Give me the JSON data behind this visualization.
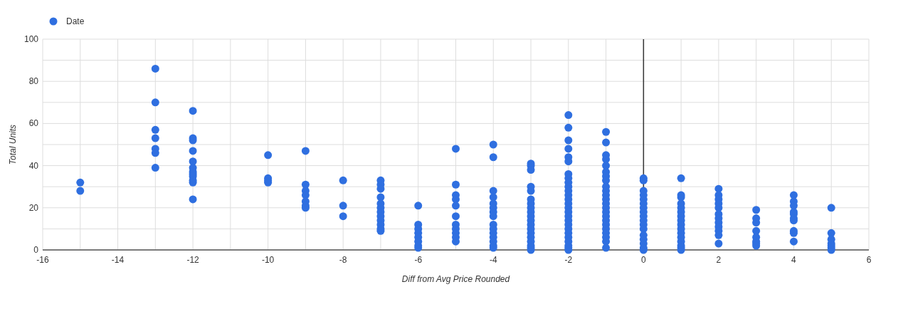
{
  "chart_data": {
    "type": "scatter",
    "xlabel": "Diff from Avg Price Rounded",
    "ylabel": "Total Units",
    "xlim": [
      -16,
      6
    ],
    "ylim": [
      0,
      100
    ],
    "xticks": [
      -16,
      {
        "value": -15,
        "label": null
      },
      -14,
      {
        "value": -13,
        "label": null
      },
      -12,
      {
        "value": -11,
        "label": null
      },
      -10,
      {
        "value": -9,
        "label": null
      },
      -8,
      {
        "value": -7,
        "label": null
      },
      -6,
      {
        "value": -5,
        "label": null
      },
      -4,
      {
        "value": -3,
        "label": null
      },
      -2,
      {
        "value": -1,
        "label": null
      },
      0,
      {
        "value": 1,
        "label": null
      },
      2,
      {
        "value": 3,
        "label": null
      },
      4,
      {
        "value": 5,
        "label": null
      },
      6
    ],
    "yticks": [
      0,
      {
        "value": 10,
        "label": null
      },
      20,
      {
        "value": 30,
        "label": null
      },
      40,
      {
        "value": 50,
        "label": null
      },
      60,
      {
        "value": 70,
        "label": null
      },
      80,
      {
        "value": 90,
        "label": null
      },
      100
    ],
    "grid": true,
    "legend": "top left",
    "marker": "circle",
    "ref_lines": [
      {
        "axis": "x",
        "value": 0,
        "color": "#333333"
      }
    ],
    "series": [
      {
        "name": "Date",
        "color": "#2f6fe0",
        "x": [
          -15,
          -15,
          -13,
          -13,
          -13,
          -13,
          -13,
          -13,
          -13,
          -12,
          -12,
          -12,
          -12,
          -12,
          -12,
          -12,
          -12,
          -12,
          -12,
          -12,
          -12,
          -10,
          -10,
          -10,
          -10,
          -9,
          -9,
          -9,
          -9,
          -9,
          -9,
          -9,
          -8,
          -8,
          -8,
          -7,
          -7,
          -7,
          -7,
          -7,
          -7,
          -7,
          -7,
          -7,
          -7,
          -7,
          -7,
          -6,
          -6,
          -6,
          -6,
          -6,
          -6,
          -6,
          -6,
          -5,
          -5,
          -5,
          -5,
          -5,
          -5,
          -5,
          -5,
          -5,
          -5,
          -5,
          -4,
          -4,
          -4,
          -4,
          -4,
          -4,
          -4,
          -4,
          -4,
          -4,
          -4,
          -4,
          -4,
          -4,
          -4,
          -3,
          -3,
          -3,
          -3,
          -3,
          -3,
          -3,
          -3,
          -3,
          -3,
          -3,
          -3,
          -3,
          -3,
          -3,
          -3,
          -3,
          -3,
          -3,
          -2,
          -2,
          -2,
          -2,
          -2,
          -2,
          -2,
          -2,
          -2,
          -2,
          -2,
          -2,
          -2,
          -2,
          -2,
          -2,
          -2,
          -2,
          -2,
          -2,
          -2,
          -2,
          -2,
          -2,
          -2,
          -2,
          -1,
          -1,
          -1,
          -1,
          -1,
          -1,
          -1,
          -1,
          -1,
          -1,
          -1,
          -1,
          -1,
          -1,
          -1,
          -1,
          -1,
          -1,
          -1,
          -1,
          -1,
          -1,
          -1,
          0,
          0,
          0,
          0,
          0,
          0,
          0,
          0,
          0,
          0,
          0,
          0,
          0,
          0,
          0,
          0,
          0,
          1,
          1,
          1,
          1,
          1,
          1,
          1,
          1,
          1,
          1,
          1,
          1,
          1,
          1,
          1,
          1,
          2,
          2,
          2,
          2,
          2,
          2,
          2,
          2,
          2,
          2,
          2,
          2,
          3,
          3,
          3,
          3,
          3,
          3,
          3,
          3,
          4,
          4,
          4,
          4,
          4,
          4,
          4,
          4,
          4,
          4,
          5,
          5,
          5,
          5,
          5,
          5,
          5
        ],
        "values": [
          32,
          28,
          86,
          70,
          57,
          53,
          48,
          46,
          39,
          66,
          53,
          52,
          47,
          42,
          39,
          37,
          36,
          35,
          33,
          32,
          24,
          45,
          34,
          33,
          32,
          47,
          31,
          28,
          26,
          23,
          21,
          20,
          33,
          21,
          16,
          33,
          31,
          29,
          25,
          22,
          20,
          18,
          16,
          14,
          12,
          10,
          9,
          21,
          12,
          10,
          8,
          6,
          4,
          2,
          1,
          48,
          31,
          26,
          24,
          21,
          16,
          12,
          10,
          8,
          6,
          4,
          50,
          44,
          28,
          25,
          22,
          20,
          18,
          16,
          12,
          10,
          8,
          6,
          4,
          2,
          1,
          41,
          40,
          38,
          30,
          28,
          24,
          22,
          20,
          18,
          16,
          14,
          12,
          10,
          8,
          6,
          4,
          2,
          1,
          0,
          64,
          58,
          52,
          48,
          44,
          42,
          36,
          34,
          32,
          30,
          28,
          26,
          24,
          22,
          20,
          18,
          16,
          14,
          12,
          10,
          8,
          6,
          4,
          2,
          1,
          0,
          56,
          51,
          45,
          43,
          40,
          37,
          35,
          33,
          30,
          28,
          26,
          24,
          22,
          20,
          18,
          16,
          14,
          12,
          10,
          8,
          6,
          4,
          1,
          34,
          33,
          28,
          26,
          24,
          22,
          20,
          18,
          16,
          14,
          12,
          10,
          7,
          5,
          3,
          1,
          0,
          34,
          26,
          25,
          22,
          20,
          18,
          16,
          14,
          12,
          10,
          8,
          6,
          4,
          2,
          1,
          0,
          29,
          26,
          24,
          22,
          20,
          17,
          15,
          13,
          11,
          9,
          7,
          3,
          19,
          15,
          13,
          9,
          6,
          4,
          3,
          2,
          26,
          23,
          21,
          18,
          17,
          15,
          14,
          9,
          8,
          4,
          20,
          8,
          5,
          3,
          2,
          1,
          0
        ]
      }
    ]
  }
}
